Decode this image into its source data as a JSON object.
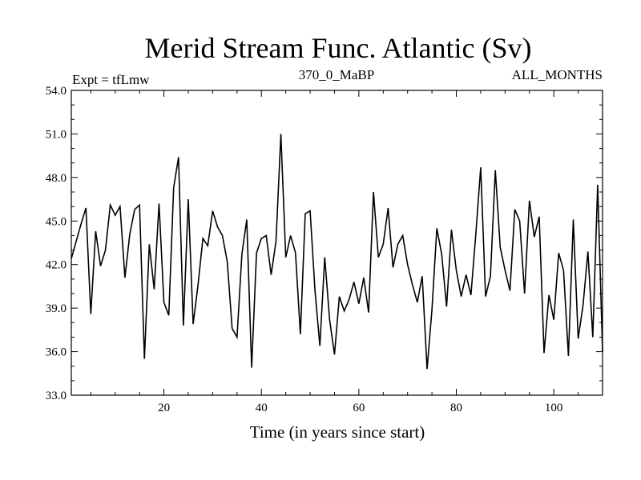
{
  "chart_data": {
    "type": "line",
    "title": "Merid Stream Func. Atlantic (Sv)",
    "top_left_label": "Expt = tfLmw",
    "top_center_label": "370_0_MaBP",
    "top_right_label": "ALL_MONTHS",
    "xlabel": "Time (in years since start)",
    "ylabel": "",
    "xlim": [
      1,
      110
    ],
    "ylim": [
      33.0,
      54.0
    ],
    "x_ticks": [
      20,
      40,
      60,
      80,
      100
    ],
    "x_tick_labels": [
      "20",
      "40",
      "60",
      "80",
      "100"
    ],
    "y_ticks": [
      33.0,
      36.0,
      39.0,
      42.0,
      45.0,
      48.0,
      51.0,
      54.0
    ],
    "y_tick_labels": [
      "33.0",
      "36.0",
      "39.0",
      "42.0",
      "45.0",
      "48.0",
      "51.0",
      "54.0"
    ],
    "grid": false,
    "series": [
      {
        "name": "Merid Stream Func. Atlantic",
        "x": [
          1,
          2,
          3,
          4,
          5,
          6,
          7,
          8,
          9,
          10,
          11,
          12,
          13,
          14,
          15,
          16,
          17,
          18,
          19,
          20,
          21,
          22,
          23,
          24,
          25,
          26,
          27,
          28,
          29,
          30,
          31,
          32,
          33,
          34,
          35,
          36,
          37,
          38,
          39,
          40,
          41,
          42,
          43,
          44,
          45,
          46,
          47,
          48,
          49,
          50,
          51,
          52,
          53,
          54,
          55,
          56,
          57,
          58,
          59,
          60,
          61,
          62,
          63,
          64,
          65,
          66,
          67,
          68,
          69,
          70,
          71,
          72,
          73,
          74,
          75,
          76,
          77,
          78,
          79,
          80,
          81,
          82,
          83,
          84,
          85,
          86,
          87,
          88,
          89,
          90,
          91,
          92,
          93,
          94,
          95,
          96,
          97,
          98,
          99,
          100,
          101,
          102,
          103,
          104,
          105,
          106,
          107,
          108,
          109,
          110
        ],
        "values": [
          42.4,
          43.6,
          44.8,
          45.9,
          38.6,
          44.3,
          41.9,
          43.0,
          46.1,
          45.4,
          46.0,
          41.1,
          44.1,
          45.8,
          46.1,
          35.5,
          43.4,
          40.3,
          46.2,
          39.4,
          38.5,
          47.3,
          49.4,
          37.8,
          46.5,
          37.9,
          40.6,
          43.8,
          43.3,
          45.7,
          44.6,
          44.0,
          42.2,
          37.6,
          37.0,
          42.7,
          45.1,
          34.9,
          42.8,
          43.8,
          44.0,
          41.3,
          43.6,
          51.0,
          42.5,
          44.0,
          42.8,
          37.2,
          45.5,
          45.7,
          40.2,
          36.4,
          42.5,
          38.2,
          35.8,
          39.8,
          38.8,
          39.6,
          40.8,
          39.3,
          41.1,
          38.7,
          47.0,
          42.5,
          43.4,
          45.9,
          41.8,
          43.4,
          44.0,
          42.0,
          40.6,
          39.4,
          41.2,
          34.8,
          38.9,
          44.5,
          42.7,
          39.1,
          44.4,
          41.6,
          39.8,
          41.3,
          39.9,
          44.1,
          48.7,
          39.8,
          41.2,
          48.5,
          43.2,
          41.6,
          40.2,
          45.8,
          45.0,
          40.0,
          46.4,
          43.9,
          45.3,
          35.9,
          39.9,
          38.2,
          42.8,
          41.6,
          35.7,
          45.1,
          36.9,
          39.2,
          42.9,
          37.0,
          47.5,
          36.0
        ]
      }
    ]
  }
}
